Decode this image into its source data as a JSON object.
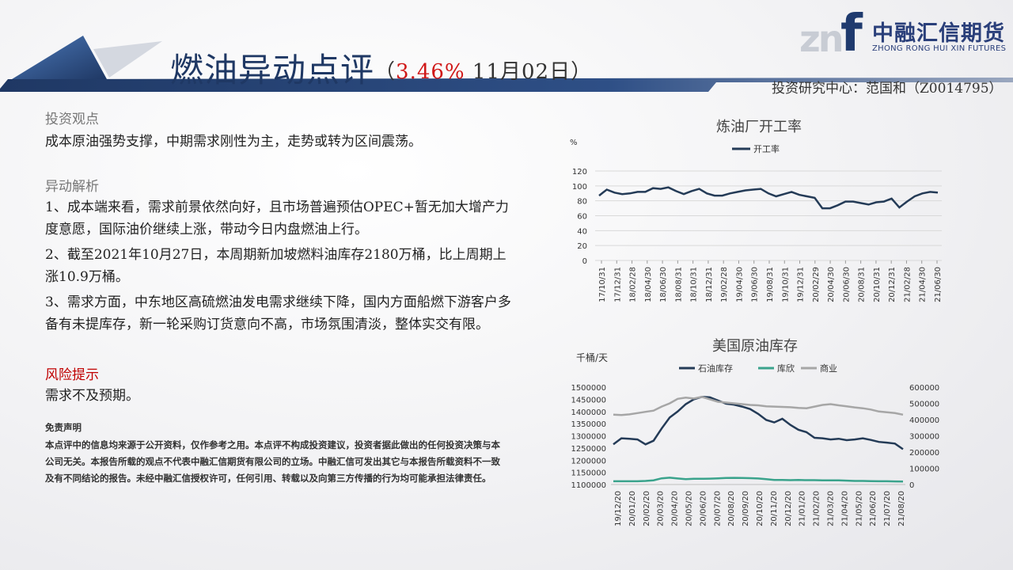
{
  "header": {
    "title_main": "燃油异动点评",
    "title_open": "（",
    "title_pct": "3.46%",
    "title_date": " 11月02日",
    "title_close": "）",
    "author": "投资研究中心：范国和（Z0014795）"
  },
  "logo": {
    "mark": "zn",
    "letter": "f",
    "name_cn": "中融汇信期货",
    "name_en": "ZHONG RONG HUI XIN FUTURES"
  },
  "content": {
    "view_title": "投资观点",
    "view_text": "成本原油强势支撑，中期需求刚性为主，走势或转为区间震荡。",
    "analysis_title": "异动解析",
    "analysis_items": [
      "1、成本端来看，需求前景依然向好，且市场普遍预估OPEC+暂无加大增产力度意愿，国际油价继续上涨，带动今日内盘燃油上行。",
      "2、截至2021年10月27日，本周期新加坡燃料油库存2180万桶，比上周期上涨10.9万桶。",
      "3、需求方面，中东地区高硫燃油发电需求继续下降，国内方面船燃下游客户多备有未提库存，新一轮采购订货意向不高，市场氛围清淡，整体实交有限。"
    ],
    "risk_title": "风险提示",
    "risk_text": "需求不及预期。",
    "disclaimer_title": "免责声明",
    "disclaimer_text": "本点评中的信息均来源于公开资料，仅作参考之用。本点评不构成投资建议，投资者据此做出的任何投资决策与本公司无关。本报告所载的观点不代表中融汇信期货有限公司的立场。中融汇信可发出其它与本报告所载资料不一致及有不同结论的报告。未经中融汇信授权许可，任何引用、转载以及向第三方传播的行为均可能承担法律责任。"
  },
  "colors": {
    "navy": "#1f3864",
    "red": "#d01818",
    "teal": "#3aa38c",
    "grey": "#a6a6a6",
    "dark": "#243b57"
  },
  "chart_data": [
    {
      "type": "line",
      "title": "炼油厂开工率",
      "unit": "%",
      "legend_position": "top",
      "ylim": [
        0,
        120
      ],
      "yticks": [
        0,
        20,
        40,
        60,
        80,
        100,
        120
      ],
      "xticks": [
        "17/10/31",
        "17/12/31",
        "18/02/28",
        "18/04/30",
        "18/06/30",
        "18/08/31",
        "18/10/31",
        "18/12/31",
        "19/02/28",
        "19/04/30",
        "19/06/30",
        "19/08/31",
        "19/10/31",
        "19/12/31",
        "20/02/29",
        "20/04/30",
        "20/06/30",
        "20/08/31",
        "20/10/31",
        "20/12/31",
        "21/02/28",
        "21/04/30",
        "21/06/30"
      ],
      "series": [
        {
          "name": "开工率",
          "color": "#243b57",
          "values": [
            87,
            95,
            91,
            89,
            90,
            92,
            92,
            97,
            96,
            98,
            93,
            89,
            93,
            96,
            90,
            87,
            87,
            90,
            92,
            94,
            95,
            96,
            90,
            86,
            89,
            92,
            88,
            86,
            84,
            70,
            70,
            74,
            79,
            79,
            77,
            75,
            78,
            79,
            83,
            71,
            79,
            86,
            90,
            92,
            91
          ]
        }
      ]
    },
    {
      "type": "line",
      "title": "美国原油库存",
      "unit": "千桶/天",
      "legend_position": "top",
      "ylim_left": [
        1100000,
        1500000
      ],
      "ylim_right": [
        0,
        600000
      ],
      "yticks_left": [
        1100000,
        1150000,
        1200000,
        1250000,
        1300000,
        1350000,
        1400000,
        1450000,
        1500000
      ],
      "yticks_right": [
        0,
        100000,
        200000,
        300000,
        400000,
        500000,
        600000
      ],
      "xticks": [
        "19/12/20",
        "20/01/20",
        "20/02/20",
        "20/03/20",
        "20/04/20",
        "20/05/20",
        "20/06/20",
        "20/07/20",
        "20/08/20",
        "20/09/20",
        "20/10/20",
        "20/11/20",
        "20/12/20",
        "21/01/20",
        "21/02/20",
        "21/03/20",
        "21/04/20",
        "21/05/20",
        "21/06/20",
        "21/07/20",
        "21/08/20"
      ],
      "series": [
        {
          "name": "石油库存",
          "color": "#243b57",
          "axis": "left",
          "values": [
            1265000,
            1290000,
            1288000,
            1285000,
            1265000,
            1280000,
            1330000,
            1375000,
            1400000,
            1430000,
            1450000,
            1460000,
            1458000,
            1445000,
            1432000,
            1428000,
            1420000,
            1410000,
            1390000,
            1365000,
            1355000,
            1370000,
            1345000,
            1325000,
            1315000,
            1292000,
            1290000,
            1285000,
            1288000,
            1282000,
            1285000,
            1290000,
            1283000,
            1275000,
            1272000,
            1268000,
            1245000
          ]
        },
        {
          "name": "库欣",
          "color": "#3aa38c",
          "axis": "right",
          "values": [
            20000,
            20000,
            20000,
            20000,
            22000,
            26000,
            38000,
            42000,
            37000,
            33000,
            35000,
            35000,
            36000,
            38000,
            40000,
            41000,
            40000,
            39000,
            37000,
            33000,
            28000,
            28000,
            27000,
            28000,
            27000,
            27000,
            26000,
            26000,
            26000,
            24000,
            22000,
            22000,
            21000,
            20000,
            20000,
            19000,
            18000
          ]
        },
        {
          "name": "商业",
          "color": "#a6a6a6",
          "axis": "right",
          "values": [
            430000,
            428000,
            432000,
            440000,
            448000,
            455000,
            480000,
            500000,
            528000,
            535000,
            530000,
            540000,
            525000,
            510000,
            505000,
            500000,
            495000,
            490000,
            488000,
            482000,
            480000,
            478000,
            476000,
            472000,
            470000,
            480000,
            490000,
            495000,
            488000,
            482000,
            475000,
            470000,
            462000,
            450000,
            445000,
            440000,
            430000
          ]
        }
      ]
    }
  ]
}
